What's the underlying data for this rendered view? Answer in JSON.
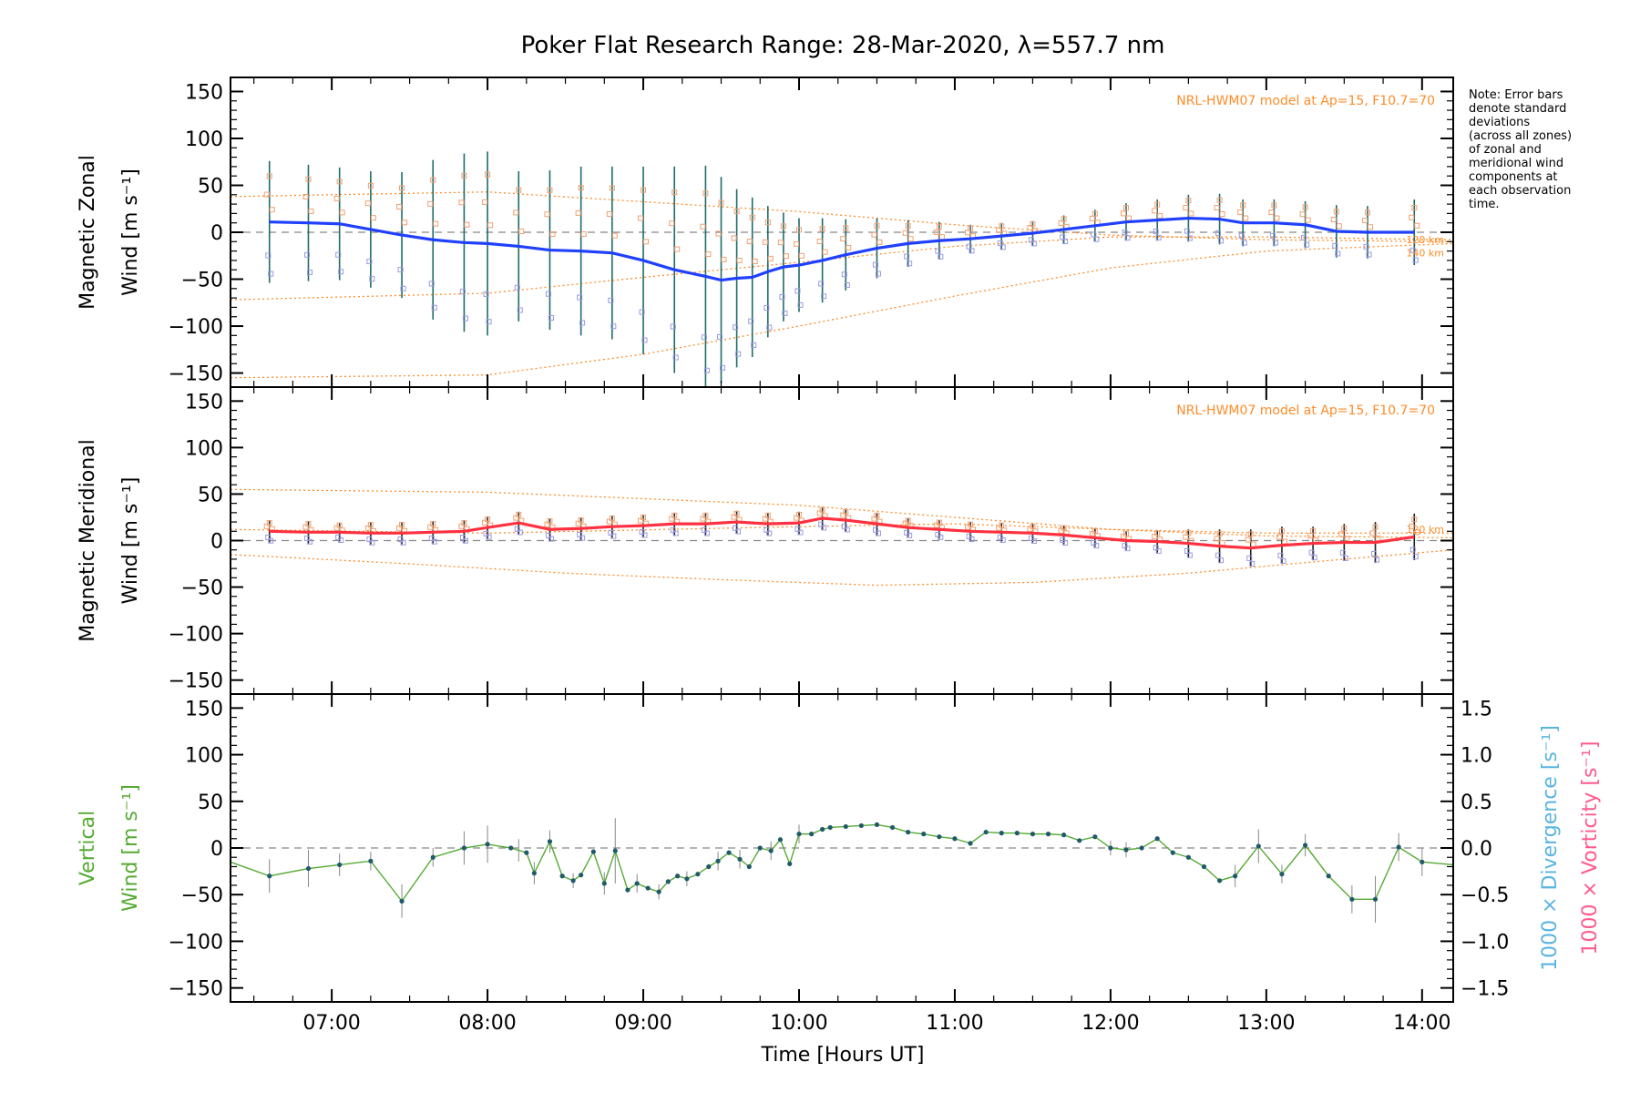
{
  "title": "Poker Flat Research Range: 28-Mar-2020, λ=557.7 nm",
  "note_lines": [
    "Note: Error bars",
    "denote standard",
    "deviations",
    "(across all zones)",
    "of zonal and",
    "meridional wind",
    "components at",
    "each observation",
    "time."
  ],
  "xaxis": {
    "label": "Time [Hours UT]",
    "range_hours": [
      6.35,
      14.2
    ],
    "tick_hours": [
      7,
      8,
      9,
      10,
      11,
      12,
      13,
      14
    ],
    "tick_labels": [
      "07:00",
      "08:00",
      "09:00",
      "10:00",
      "11:00",
      "12:00",
      "13:00",
      "14:00"
    ]
  },
  "yaxis": {
    "range": [
      -165,
      165
    ],
    "ticks": [
      150,
      100,
      50,
      0,
      -50,
      -100,
      -150
    ],
    "tick_labels": [
      "150",
      "100",
      "50",
      "0",
      "−50",
      "−100",
      "−150"
    ]
  },
  "right_axis": {
    "range": [
      -1.65,
      1.65
    ],
    "ticks": [
      1.5,
      1.0,
      0.5,
      0.0,
      -0.5,
      -1.0,
      -1.5
    ],
    "tick_labels": [
      "1.5",
      "1.0",
      "0.5",
      "0.0",
      "−0.5",
      "−1.0",
      "−1.5"
    ],
    "divergence_label": "1000 × Divergence [s⁻¹]",
    "vorticity_label": "1000 × Vorticity [s⁻¹]",
    "divergence_color": "#5ab4e0",
    "vorticity_color": "#ff5a8c"
  },
  "model_label": "NRL-HWM07 model at Ap=15, F10.7=70",
  "model_alt_labels": [
    "120 km",
    "140 km"
  ],
  "colors": {
    "zonal": "#2040ff",
    "meridional": "#ff3040",
    "vertical": "#55aa33",
    "model": "#ff8c28",
    "errbar_zonal": "#1f6a6a",
    "errbar_merid": "#202020",
    "zone_zonal": "#f0a070",
    "zone_merid": "#9a9ae0"
  },
  "chart_data": [
    {
      "type": "line",
      "panel": "zonal",
      "ylabel": "Magnetic Zonal Wind [m s⁻¹]",
      "ylim": [
        -165,
        165
      ],
      "series": [
        {
          "x": [
            6.6,
            6.85,
            7.05,
            7.25,
            7.45,
            7.65,
            7.85,
            8.0,
            8.2,
            8.4,
            8.6,
            8.8,
            9.0,
            9.2,
            9.4,
            9.5,
            9.6,
            9.7,
            9.8,
            9.9,
            10.0,
            10.15,
            10.3,
            10.5,
            10.7,
            10.9,
            11.1,
            11.3,
            11.5,
            11.7,
            11.9,
            12.1,
            12.3,
            12.5,
            12.7,
            12.85,
            13.05,
            13.25,
            13.45,
            13.65,
            13.95
          ],
          "y": [
            11,
            10,
            9,
            3,
            -3,
            -8,
            -11,
            -12,
            -15,
            -19,
            -20,
            -22,
            -30,
            -40,
            -47,
            -51,
            -49,
            -48,
            -42,
            -37,
            -35,
            -30,
            -24,
            -17,
            -12,
            -9,
            -7,
            -4,
            -1,
            3,
            7,
            11,
            13,
            15,
            14,
            10,
            10,
            8,
            1,
            0,
            0
          ]
        }
      ],
      "error_bars": {
        "x": [
          6.6,
          6.85,
          7.05,
          7.25,
          7.45,
          7.65,
          7.85,
          8.0,
          8.2,
          8.4,
          8.6,
          8.8,
          9.0,
          9.2,
          9.4,
          9.5,
          9.6,
          9.7,
          9.8,
          9.9,
          10.0,
          10.15,
          10.3,
          10.5,
          10.7,
          10.9,
          11.1,
          11.3,
          11.5,
          11.7,
          11.9,
          12.1,
          12.3,
          12.5,
          12.7,
          12.85,
          13.05,
          13.25,
          13.45,
          13.65,
          13.95
        ],
        "sigma": [
          65,
          62,
          60,
          62,
          67,
          85,
          95,
          98,
          80,
          85,
          90,
          92,
          100,
          110,
          118,
          110,
          95,
          85,
          70,
          58,
          50,
          45,
          38,
          32,
          25,
          20,
          15,
          14,
          13,
          15,
          17,
          20,
          22,
          25,
          27,
          25,
          25,
          25,
          28,
          28,
          35
        ]
      },
      "model_curves": [
        {
          "x": [
            6.35,
            8.0,
            10.0,
            11.0,
            12.0,
            13.0,
            14.2
          ],
          "y": [
            38,
            43,
            22,
            8,
            -3,
            -8,
            -10
          ]
        },
        {
          "x": [
            6.35,
            8.0,
            9.0,
            10.0,
            11.0,
            12.0,
            13.0,
            14.2
          ],
          "y": [
            -72,
            -65,
            -48,
            -32,
            -15,
            -5,
            -5,
            -8
          ]
        },
        {
          "x": [
            6.35,
            8.0,
            9.0,
            10.0,
            11.0,
            12.0,
            13.0,
            14.2
          ],
          "y": [
            -155,
            -152,
            -130,
            -100,
            -68,
            -38,
            -20,
            -12
          ]
        }
      ]
    },
    {
      "type": "line",
      "panel": "meridional",
      "ylabel": "Magnetic Meridional Wind [m s⁻¹]",
      "ylim": [
        -165,
        165
      ],
      "series": [
        {
          "x": [
            6.6,
            6.85,
            7.05,
            7.25,
            7.45,
            7.65,
            7.85,
            8.0,
            8.2,
            8.4,
            8.6,
            8.8,
            9.0,
            9.2,
            9.4,
            9.6,
            9.8,
            10.0,
            10.15,
            10.3,
            10.5,
            10.7,
            10.9,
            11.1,
            11.3,
            11.5,
            11.7,
            11.9,
            12.1,
            12.3,
            12.5,
            12.7,
            12.9,
            13.1,
            13.3,
            13.5,
            13.7,
            13.95
          ],
          "y": [
            10,
            9,
            9,
            8,
            8,
            9,
            10,
            14,
            19,
            12,
            13,
            15,
            16,
            18,
            18,
            20,
            18,
            19,
            24,
            22,
            18,
            14,
            12,
            10,
            9,
            8,
            6,
            3,
            0,
            -1,
            -3,
            -6,
            -8,
            -5,
            -3,
            -2,
            -2,
            4
          ]
        }
      ],
      "error_bars": {
        "x": [
          6.6,
          6.85,
          7.05,
          7.25,
          7.45,
          7.65,
          7.85,
          8.0,
          8.2,
          8.4,
          8.6,
          8.8,
          9.0,
          9.2,
          9.4,
          9.6,
          9.8,
          10.0,
          10.15,
          10.3,
          10.5,
          10.7,
          10.9,
          11.1,
          11.3,
          11.5,
          11.7,
          11.9,
          12.1,
          12.3,
          12.5,
          12.7,
          12.9,
          13.1,
          13.3,
          13.5,
          13.7,
          13.95
        ],
        "sigma": [
          12,
          12,
          10,
          12,
          12,
          12,
          12,
          12,
          12,
          12,
          12,
          12,
          12,
          12,
          12,
          12,
          12,
          12,
          12,
          12,
          12,
          10,
          10,
          10,
          10,
          10,
          10,
          10,
          10,
          12,
          15,
          18,
          20,
          20,
          18,
          20,
          22,
          25
        ]
      },
      "model_curves": [
        {
          "x": [
            6.35,
            8.0,
            10.0,
            11.0,
            12.0,
            13.0,
            14.2
          ],
          "y": [
            55,
            52,
            38,
            25,
            12,
            5,
            3
          ]
        },
        {
          "x": [
            6.35,
            8.0,
            10.0,
            11.0,
            12.0,
            13.0,
            14.2
          ],
          "y": [
            12,
            8,
            15,
            18,
            12,
            8,
            8
          ]
        },
        {
          "x": [
            6.35,
            7.5,
            8.5,
            9.5,
            10.5,
            11.5,
            12.5,
            13.5,
            14.2
          ],
          "y": [
            -15,
            -25,
            -35,
            -42,
            -48,
            -45,
            -35,
            -20,
            -10
          ]
        }
      ]
    },
    {
      "type": "line",
      "panel": "vertical",
      "ylabel": "Vertical Wind [m s⁻¹]",
      "ylim": [
        -165,
        165
      ],
      "series": [
        {
          "x": [
            6.35,
            6.6,
            6.85,
            7.05,
            7.25,
            7.45,
            7.65,
            7.85,
            8.0,
            8.15,
            8.25,
            8.3,
            8.4,
            8.48,
            8.55,
            8.6,
            8.68,
            8.75,
            8.82,
            8.9,
            8.96,
            9.03,
            9.1,
            9.16,
            9.22,
            9.28,
            9.35,
            9.42,
            9.48,
            9.55,
            9.62,
            9.68,
            9.75,
            9.82,
            9.88,
            9.94,
            10.0,
            10.08,
            10.15,
            10.2,
            10.3,
            10.4,
            10.5,
            10.6,
            10.7,
            10.8,
            10.9,
            11.0,
            11.1,
            11.2,
            11.3,
            11.4,
            11.5,
            11.6,
            11.7,
            11.8,
            11.9,
            12.0,
            12.1,
            12.2,
            12.3,
            12.4,
            12.5,
            12.6,
            12.7,
            12.8,
            12.95,
            13.1,
            13.25,
            13.4,
            13.55,
            13.7,
            13.85,
            14.0,
            14.2
          ],
          "y": [
            -15,
            -30,
            -22,
            -18,
            -14,
            -57,
            -10,
            0,
            4,
            0,
            -5,
            -27,
            7,
            -30,
            -35,
            -29,
            -4,
            -38,
            -3,
            -45,
            -38,
            -43,
            -47,
            -36,
            -30,
            -33,
            -28,
            -20,
            -14,
            -5,
            -12,
            -20,
            0,
            -3,
            9,
            -17,
            15,
            15,
            20,
            22,
            23,
            24,
            25,
            22,
            17,
            15,
            12,
            10,
            5,
            17,
            16,
            16,
            15,
            15,
            14,
            8,
            12,
            0,
            -2,
            0,
            10,
            -5,
            -10,
            -20,
            -35,
            -30,
            2,
            -28,
            3,
            -30,
            -55,
            -55,
            1,
            -15,
            -18
          ]
        }
      ],
      "error_bars": {
        "x": [
          6.6,
          6.85,
          7.05,
          7.25,
          7.45,
          7.65,
          7.85,
          8.0,
          8.2,
          8.3,
          8.4,
          8.55,
          8.75,
          8.82,
          8.96,
          9.1,
          9.28,
          9.48,
          9.62,
          9.82,
          10.0,
          12.0,
          12.1,
          12.8,
          12.95,
          13.1,
          13.25,
          13.55,
          13.7,
          13.85,
          14.0
        ],
        "sigma": [
          18,
          20,
          12,
          10,
          18,
          10,
          18,
          20,
          12,
          12,
          12,
          8,
          12,
          35,
          10,
          8,
          8,
          10,
          10,
          10,
          10,
          8,
          8,
          12,
          18,
          10,
          12,
          15,
          25,
          15,
          15
        ]
      }
    }
  ]
}
